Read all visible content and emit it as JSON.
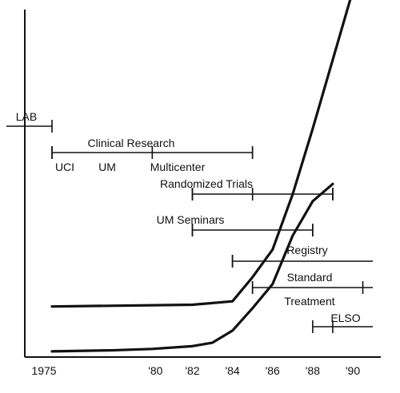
{
  "chart_data": {
    "type": "line",
    "x_range": [
      1975,
      1991
    ],
    "x_ticks": [
      {
        "value": 1975,
        "label": "1975"
      },
      {
        "value": 1980,
        "label": "'80"
      },
      {
        "value": 1982,
        "label": "'82"
      },
      {
        "value": 1984,
        "label": "'84"
      },
      {
        "value": 1986,
        "label": "'86"
      },
      {
        "value": 1988,
        "label": "'88"
      },
      {
        "value": 1990,
        "label": "'90"
      }
    ],
    "y_range": [
      0,
      100
    ],
    "series": [
      {
        "x": [
          1975,
          1978,
          1980,
          1982,
          1983,
          1984,
          1985,
          1986,
          1987,
          1988,
          1989
        ],
        "y": [
          0.5,
          0.8,
          1.2,
          2,
          3,
          6.5,
          13,
          20,
          34,
          44,
          49
        ]
      },
      {
        "x": [
          1975,
          1982,
          1984,
          1985,
          1986,
          1987,
          1988,
          1989,
          1990
        ],
        "y": [
          13.5,
          14,
          15,
          22,
          30,
          46,
          65,
          85,
          105
        ]
      }
    ],
    "timelines": [
      {
        "label": "LAB",
        "start": 1970,
        "end": 1975,
        "ticks": [
          1975
        ]
      },
      {
        "label": "Clinical Research",
        "start": 1975,
        "end": 1985,
        "ticks": [
          1975,
          1980,
          1985
        ],
        "sub_labels": [
          "UCI",
          "UM",
          "Multicenter"
        ]
      },
      {
        "label": "Randomized Trials",
        "start": 1982,
        "end": 1989,
        "ticks": [
          1982,
          1985,
          1989
        ]
      },
      {
        "label": "UM Seminars",
        "start": 1982,
        "end": 1988,
        "ticks": [
          1982,
          1988
        ]
      },
      {
        "label": "Registry",
        "start": 1984,
        "end": 1991,
        "ticks": [
          1984
        ]
      },
      {
        "label": "Standard",
        "label2": "Treatment",
        "start": 1985,
        "end": 1991,
        "ticks": [
          1985,
          1990.5
        ]
      },
      {
        "label": "ELSO",
        "start": 1988,
        "end": 1991,
        "ticks": [
          1989
        ]
      }
    ]
  }
}
